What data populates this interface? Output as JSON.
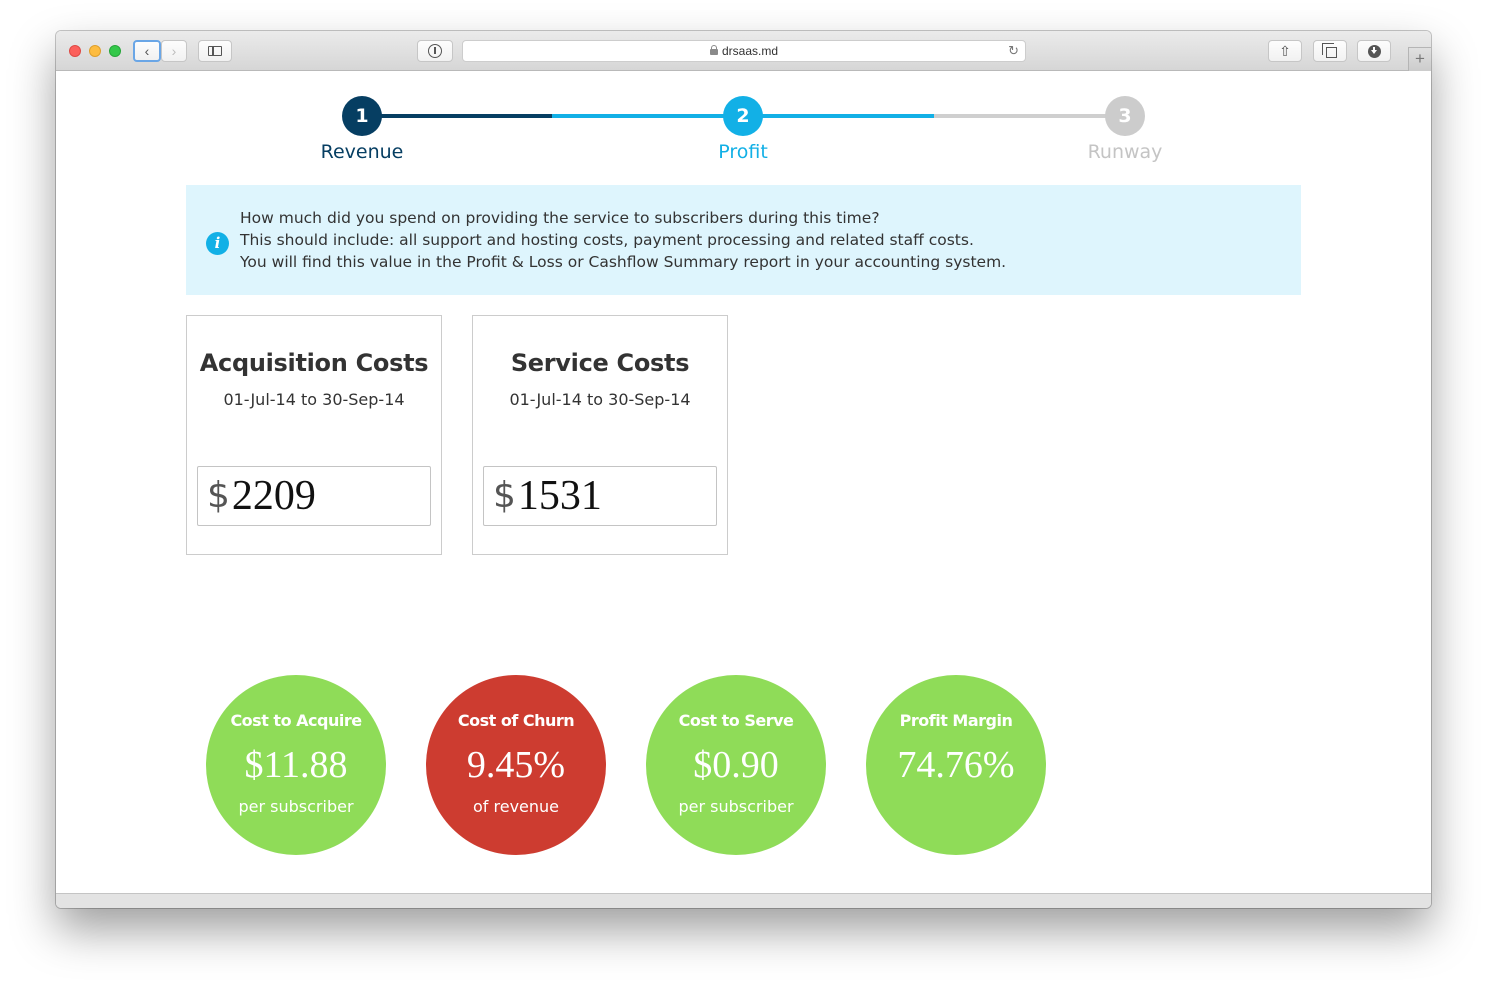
{
  "browser": {
    "url": "drsaas.md",
    "icons": {
      "back": "chevron-left-icon",
      "forward": "chevron-right-icon",
      "sidebar": "sidebar-icon",
      "reader": "reader-icon",
      "lock": "lock-icon",
      "reload": "reload-icon",
      "share": "share-icon",
      "tabs": "tabs-icon",
      "download": "download-icon",
      "new_tab": "plus-icon"
    }
  },
  "stepper": {
    "steps": [
      {
        "number": "1",
        "label": "Revenue",
        "state": "complete",
        "color": "#063e62"
      },
      {
        "number": "2",
        "label": "Profit",
        "state": "current",
        "color": "#12b0e6"
      },
      {
        "number": "3",
        "label": "Runway",
        "state": "upcoming",
        "color": "#cccccc"
      }
    ]
  },
  "info": {
    "icon": "info-icon",
    "lines": [
      "How much did you spend on providing the service to subscribers during this time?",
      "This should include: all support and hosting costs, payment processing and related staff costs.",
      "You will find this value in the Profit & Loss or Cashflow Summary report in your accounting system."
    ]
  },
  "cards": [
    {
      "title": "Acquisition Costs",
      "range": "01-Jul-14 to 30-Sep-14",
      "currency": "$",
      "value": "2209"
    },
    {
      "title": "Service Costs",
      "range": "01-Jul-14 to 30-Sep-14",
      "currency": "$",
      "value": "1531"
    }
  ],
  "metrics": [
    {
      "title": "Cost to Acquire",
      "value": "$11.88",
      "sub": "per subscriber",
      "color": "#8fdc58"
    },
    {
      "title": "Cost of Churn",
      "value": "9.45%",
      "sub": "of revenue",
      "color": "#cd3c30"
    },
    {
      "title": "Cost to Serve",
      "value": "$0.90",
      "sub": "per subscriber",
      "color": "#8fdc58"
    },
    {
      "title": "Profit Margin",
      "value": "74.76%",
      "sub": "",
      "color": "#8fdc58"
    }
  ]
}
